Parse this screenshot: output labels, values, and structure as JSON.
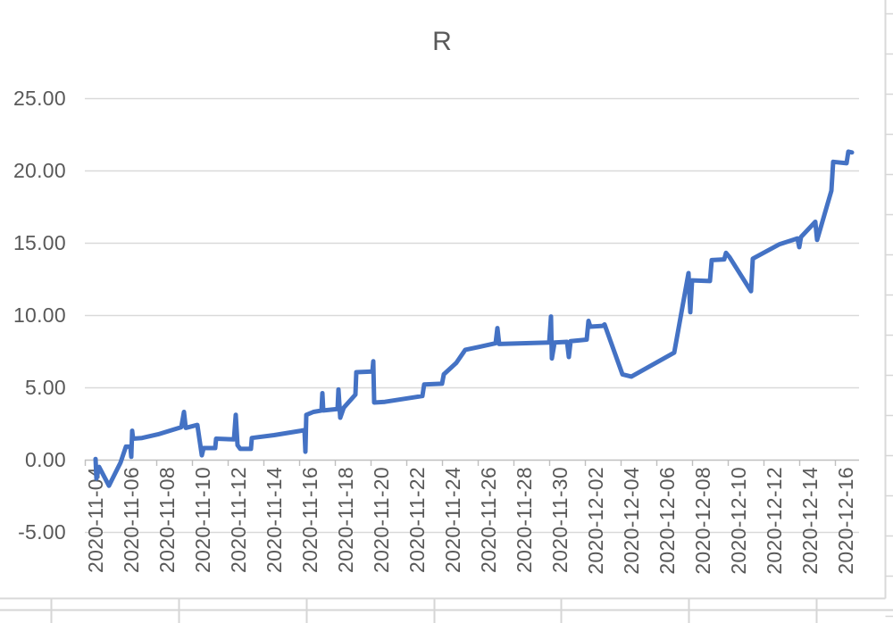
{
  "chart_data": {
    "type": "line",
    "title": "R",
    "legend": "none",
    "grid": true,
    "x_start_date": "2020-11-04",
    "x_axis": {
      "tick_labels": [
        "2020-11-04",
        "2020-11-06",
        "2020-11-08",
        "2020-11-10",
        "2020-11-12",
        "2020-11-14",
        "2020-11-16",
        "2020-11-18",
        "2020-11-20",
        "2020-11-22",
        "2020-11-24",
        "2020-11-26",
        "2020-11-28",
        "2020-11-30",
        "2020-12-02",
        "2020-12-04",
        "2020-12-06",
        "2020-12-08",
        "2020-12-10",
        "2020-12-12",
        "2020-12-14",
        "2020-12-16"
      ],
      "label_rotation_deg": -90,
      "tick_interval_days": 2
    },
    "y_axis": {
      "tick_labels": [
        "25.00",
        "20.00",
        "15.00",
        "10.00",
        "5.00",
        "0.00",
        "-5.00"
      ],
      "min": -5,
      "max": 25,
      "step": 5
    },
    "series_name": "R",
    "points_unit": "days_since_2020-11-04",
    "points": [
      [
        0,
        0.05
      ],
      [
        0.05,
        -1.3
      ],
      [
        0.2,
        -0.5
      ],
      [
        0.75,
        -1.8
      ],
      [
        1.4,
        -0.2
      ],
      [
        1.7,
        0.9
      ],
      [
        1.95,
        0.9
      ],
      [
        2,
        0.2
      ],
      [
        2.05,
        2
      ],
      [
        2.1,
        1.45
      ],
      [
        2.6,
        1.5
      ],
      [
        3.5,
        1.75
      ],
      [
        4.8,
        2.25
      ],
      [
        4.95,
        3.3
      ],
      [
        5.05,
        2.2
      ],
      [
        5.7,
        2.4
      ],
      [
        5.95,
        0.3
      ],
      [
        6.05,
        0.8
      ],
      [
        6.7,
        0.8
      ],
      [
        6.75,
        1.45
      ],
      [
        7.75,
        1.4
      ],
      [
        7.85,
        3.1
      ],
      [
        7.95,
        1
      ],
      [
        8.1,
        0.75
      ],
      [
        8.7,
        0.75
      ],
      [
        8.75,
        1.5
      ],
      [
        10,
        1.7
      ],
      [
        11.5,
        2
      ],
      [
        11.7,
        2.05
      ],
      [
        11.75,
        0.55
      ],
      [
        11.8,
        3.1
      ],
      [
        12.2,
        3.3
      ],
      [
        12.65,
        3.4
      ],
      [
        12.7,
        4.6
      ],
      [
        12.75,
        3.4
      ],
      [
        13.55,
        3.5
      ],
      [
        13.6,
        4.85
      ],
      [
        13.7,
        2.9
      ],
      [
        13.9,
        3.6
      ],
      [
        14.55,
        4.5
      ],
      [
        14.6,
        6.05
      ],
      [
        15.5,
        6.1
      ],
      [
        15.55,
        6.8
      ],
      [
        15.6,
        3.95
      ],
      [
        16.2,
        4
      ],
      [
        18.3,
        4.4
      ],
      [
        18.4,
        5.2
      ],
      [
        19.4,
        5.25
      ],
      [
        19.5,
        5.9
      ],
      [
        20.2,
        6.7
      ],
      [
        20.7,
        7.6
      ],
      [
        21.5,
        7.8
      ],
      [
        22.4,
        8.05
      ],
      [
        22.5,
        9.1
      ],
      [
        22.6,
        8
      ],
      [
        25.4,
        8.1
      ],
      [
        25.5,
        9.9
      ],
      [
        25.55,
        7
      ],
      [
        25.7,
        8.1
      ],
      [
        26.4,
        8.15
      ],
      [
        26.5,
        7.1
      ],
      [
        26.6,
        8.2
      ],
      [
        27.5,
        8.3
      ],
      [
        27.6,
        9.6
      ],
      [
        27.7,
        9.2
      ],
      [
        28.4,
        9.25
      ],
      [
        28.5,
        9.35
      ],
      [
        29.5,
        5.9
      ],
      [
        30,
        5.75
      ],
      [
        32.4,
        7.4
      ],
      [
        33.2,
        12.9
      ],
      [
        33.3,
        10.2
      ],
      [
        33.4,
        12.4
      ],
      [
        34.4,
        12.35
      ],
      [
        34.5,
        13.8
      ],
      [
        35.2,
        13.85
      ],
      [
        35.3,
        14.3
      ],
      [
        35.5,
        14
      ],
      [
        36.7,
        11.65
      ],
      [
        36.8,
        13.9
      ],
      [
        38.3,
        14.9
      ],
      [
        39.3,
        15.3
      ],
      [
        39.4,
        14.7
      ],
      [
        39.5,
        15.4
      ],
      [
        40.3,
        16.45
      ],
      [
        40.4,
        15.2
      ],
      [
        41.2,
        18.6
      ],
      [
        41.3,
        20.6
      ],
      [
        42.05,
        20.5
      ],
      [
        42.15,
        21.3
      ],
      [
        42.35,
        21.25
      ]
    ]
  },
  "colors": {
    "series": "#4472C4",
    "gridline": "#D9D9D9",
    "axis_line": "#BFBFBF",
    "text": "#595959",
    "chart_border": "#D9D9D9",
    "sheet_gridline": "#D6D6D6",
    "background": "#FFFFFF"
  }
}
